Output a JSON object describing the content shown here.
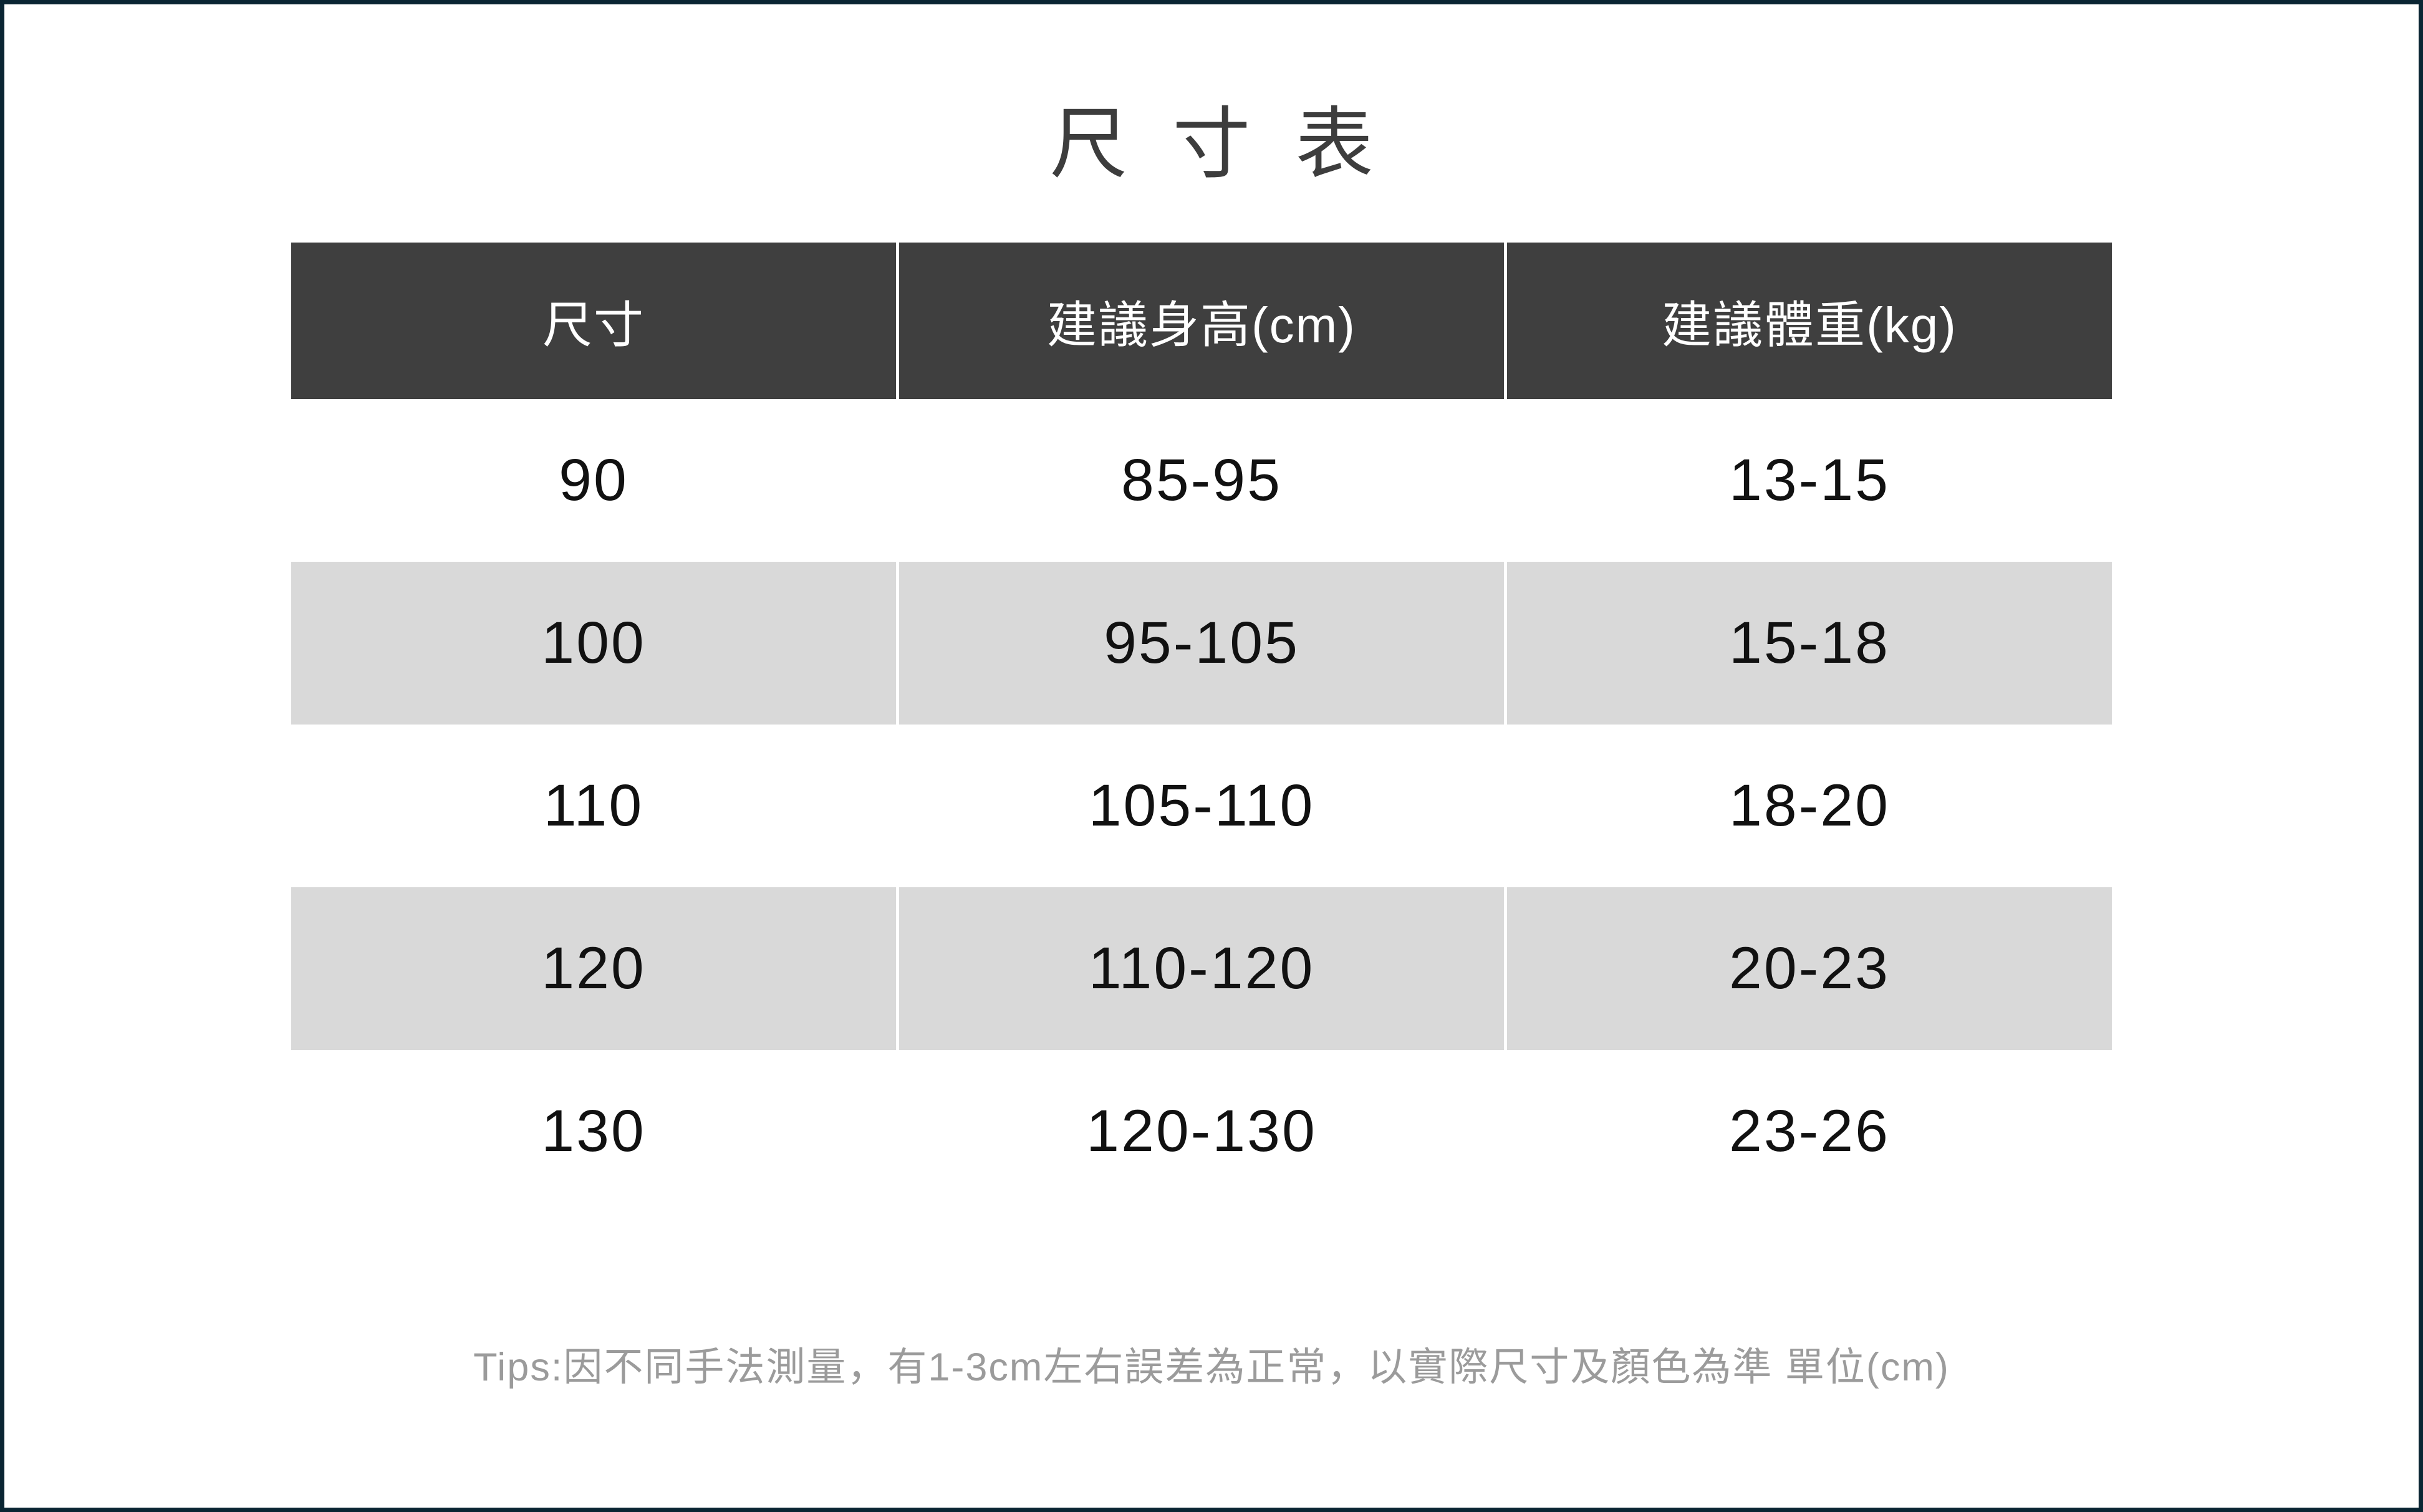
{
  "page": {
    "title": "尺寸表",
    "tips": "Tips:因不同手法測量，有1-3cm左右誤差為正常，以實際尺寸及顏色為準 單位(cm)"
  },
  "table": {
    "columns": [
      "尺寸",
      "建議身高(cm)",
      "建議體重(kg)"
    ],
    "rows": [
      [
        "90",
        "85-95",
        "13-15"
      ],
      [
        "100",
        "95-105",
        "15-18"
      ],
      [
        "110",
        "105-110",
        "18-20"
      ],
      [
        "120",
        "110-120",
        "20-23"
      ],
      [
        "130",
        "120-130",
        "23-26"
      ]
    ]
  },
  "colors": {
    "frame_border": "#0a2533",
    "header_bg": "#3f3f3f",
    "header_text": "#ffffff",
    "zebra_row_bg": "#d9d9d9",
    "title_text": "#3d3d3d",
    "body_text": "#111111",
    "tips_text": "#9b9b9b"
  }
}
